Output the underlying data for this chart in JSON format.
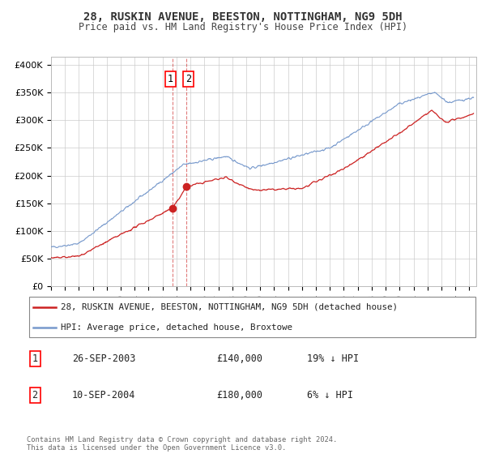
{
  "title": "28, RUSKIN AVENUE, BEESTON, NOTTINGHAM, NG9 5DH",
  "subtitle": "Price paid vs. HM Land Registry's House Price Index (HPI)",
  "ylabel_ticks": [
    "£0",
    "£50K",
    "£100K",
    "£150K",
    "£200K",
    "£250K",
    "£300K",
    "£350K",
    "£400K"
  ],
  "ytick_values": [
    0,
    50000,
    100000,
    150000,
    200000,
    250000,
    300000,
    350000,
    400000
  ],
  "ylim": [
    0,
    415000
  ],
  "xlim_start": 1995.0,
  "xlim_end": 2025.5,
  "hpi_color": "#7799cc",
  "price_color": "#cc2222",
  "marker1_date": 2003.73,
  "marker1_price": 140000,
  "marker2_date": 2004.69,
  "marker2_price": 180000,
  "transaction1": {
    "label": "1",
    "date": "26-SEP-2003",
    "price": "£140,000",
    "hpi": "19% ↓ HPI"
  },
  "transaction2": {
    "label": "2",
    "date": "10-SEP-2004",
    "price": "£180,000",
    "hpi": "6% ↓ HPI"
  },
  "legend_price_label": "28, RUSKIN AVENUE, BEESTON, NOTTINGHAM, NG9 5DH (detached house)",
  "legend_hpi_label": "HPI: Average price, detached house, Broxtowe",
  "footer": "Contains HM Land Registry data © Crown copyright and database right 2024.\nThis data is licensed under the Open Government Licence v3.0.",
  "background_color": "#ffffff",
  "grid_color": "#cccccc"
}
